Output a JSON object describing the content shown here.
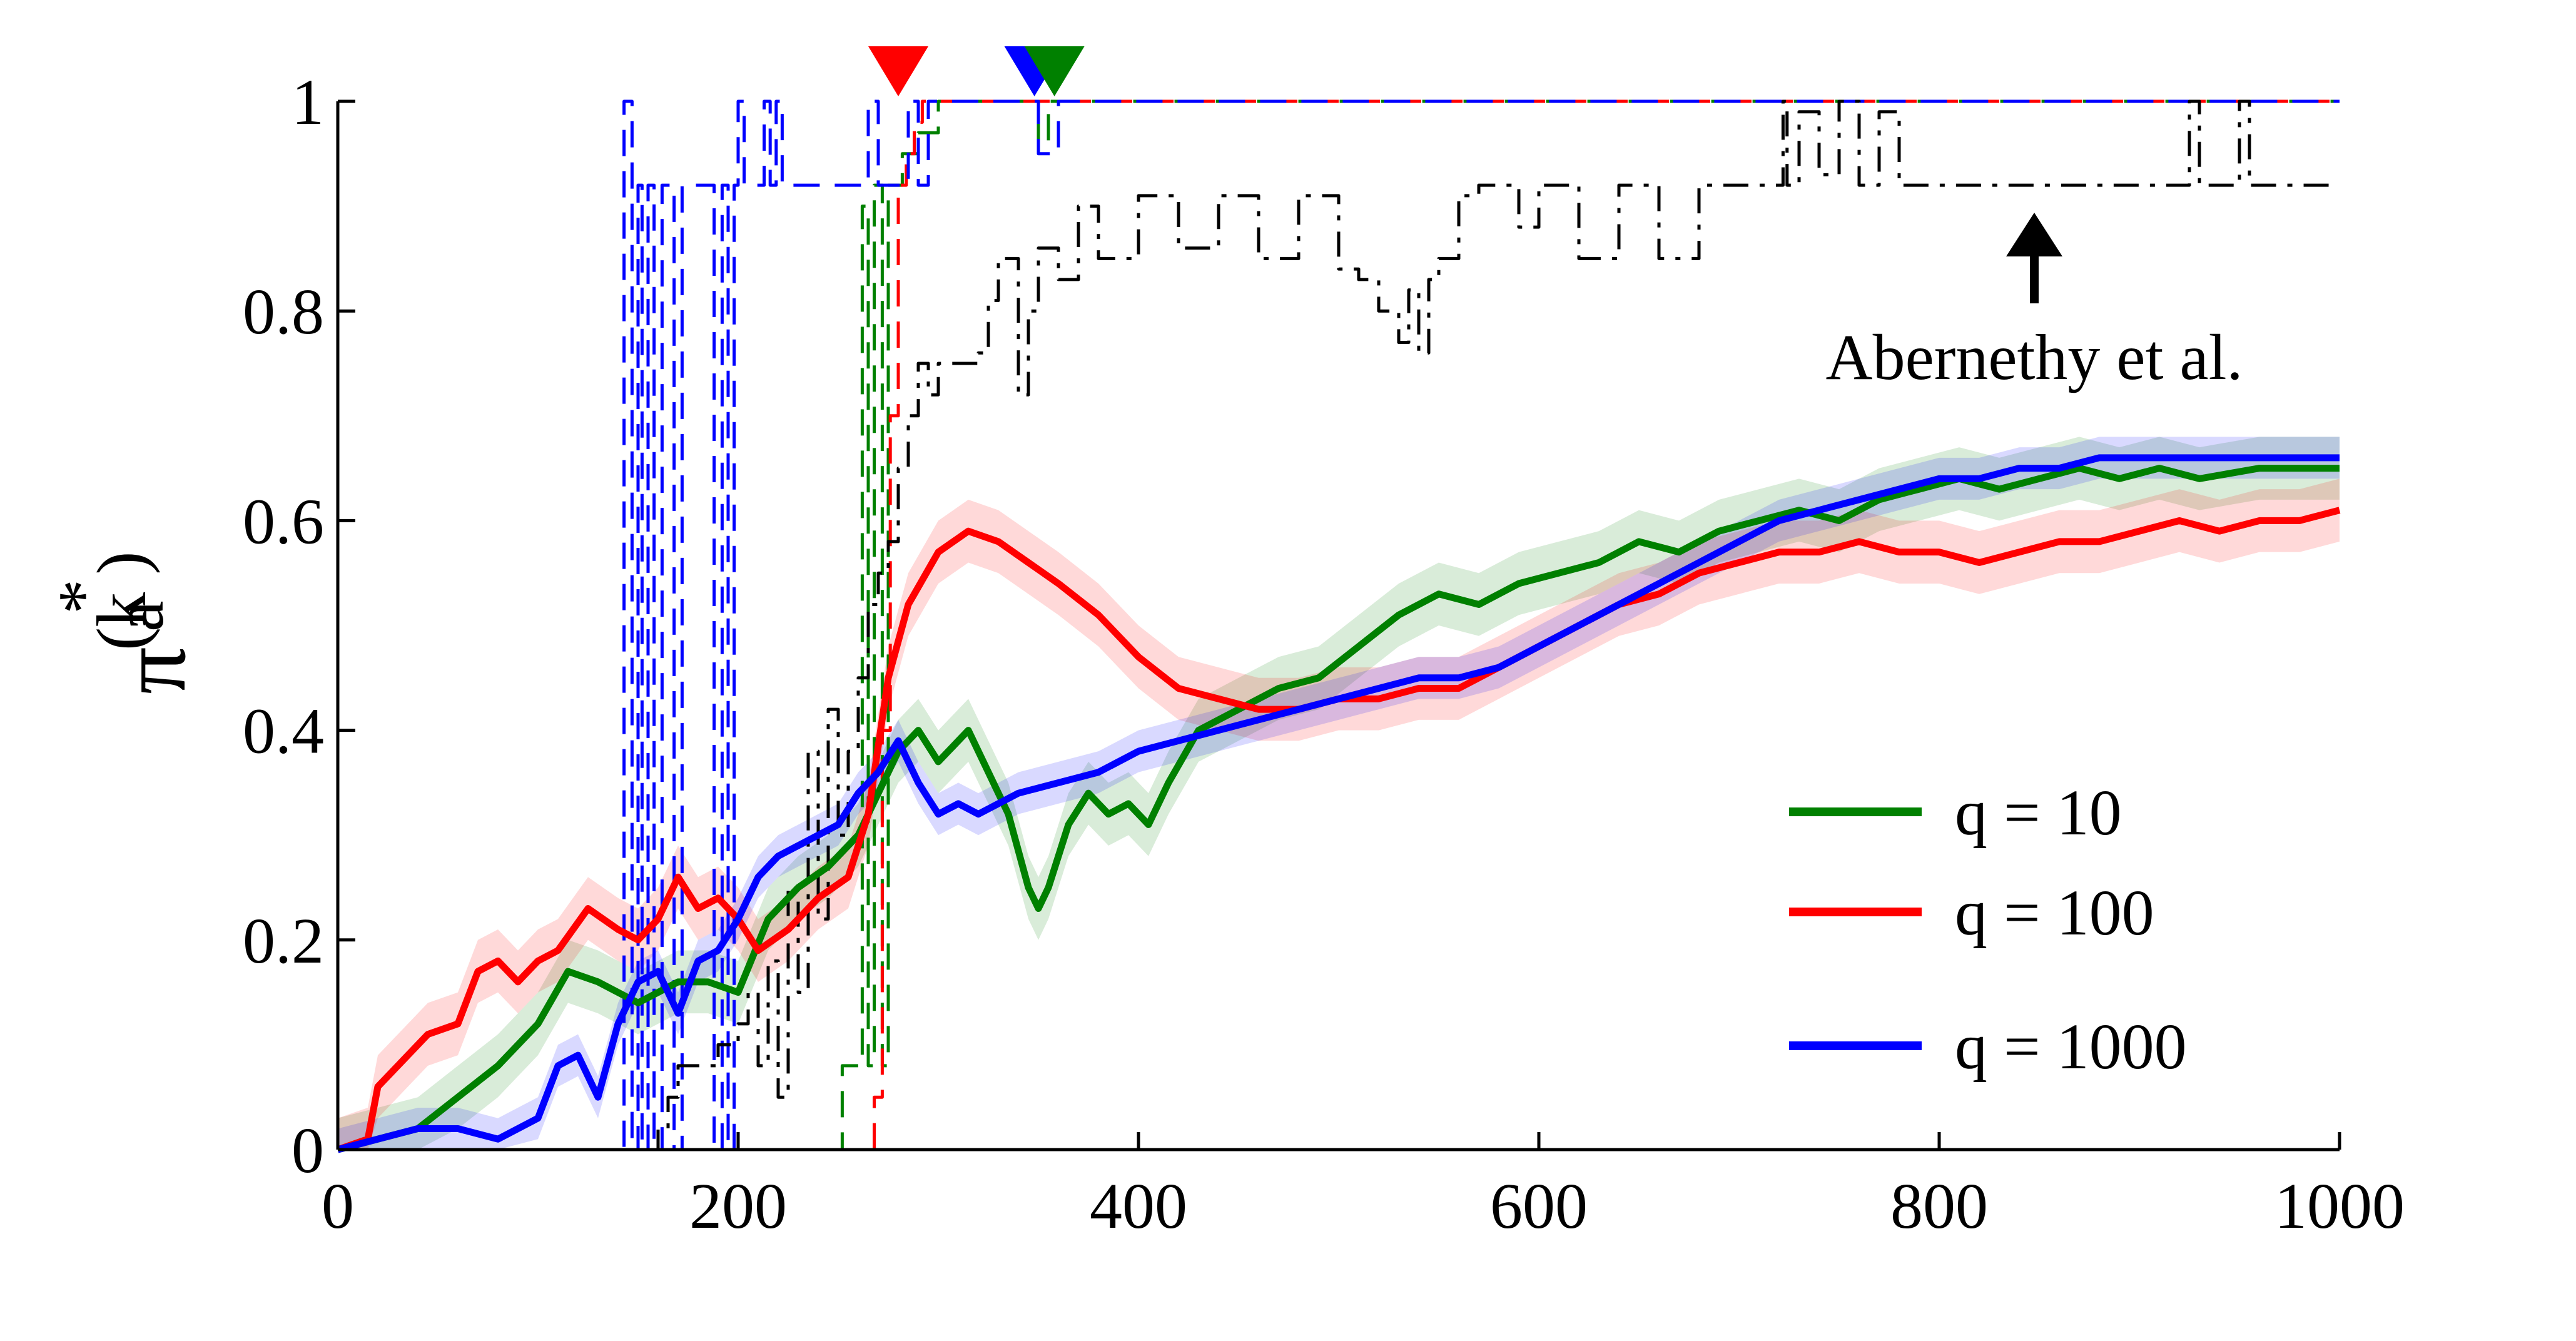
{
  "chart_data": {
    "type": "line",
    "title": "",
    "xlabel": "",
    "ylabel": {
      "symbol": "π",
      "superscript": "(k )",
      "star": "*",
      "subscript": "a"
    },
    "xlim": [
      0,
      1000
    ],
    "ylim": [
      0,
      1
    ],
    "x_ticks": [
      0,
      200,
      400,
      600,
      800,
      1000
    ],
    "y_ticks": [
      0,
      0.2,
      0.4,
      0.6,
      0.8,
      1
    ],
    "x_tick_labels": [
      "0",
      "200",
      "400",
      "600",
      "800",
      "1000"
    ],
    "y_tick_labels": [
      "0",
      "0.2",
      "0.4",
      "0.6",
      "0.8",
      "1"
    ],
    "grid": false,
    "legend_position": "lower-right",
    "legend": [
      {
        "label": "q = 10",
        "color": "#008000"
      },
      {
        "label": "q = 100",
        "color": "#ff0000"
      },
      {
        "label": "q = 1000",
        "color": "#0000ff"
      }
    ],
    "annotation": {
      "text": "Abernethy et al.",
      "x": 845,
      "y": 0.82
    },
    "series": [
      {
        "color": "#008000",
        "style": "solid",
        "x": [
          0,
          20,
          40,
          60,
          80,
          100,
          115,
          130,
          150,
          170,
          185,
          200,
          215,
          230,
          245,
          260,
          280,
          290,
          300,
          315,
          325,
          335,
          345,
          350,
          355,
          365,
          375,
          385,
          395,
          405,
          415,
          430,
          450,
          470,
          490,
          510,
          530,
          550,
          570,
          590,
          610,
          630,
          650,
          670,
          690,
          710,
          730,
          750,
          770,
          790,
          810,
          830,
          850,
          870,
          890,
          910,
          930,
          960,
          1000
        ],
        "y": [
          0,
          0.01,
          0.02,
          0.05,
          0.08,
          0.12,
          0.17,
          0.16,
          0.14,
          0.16,
          0.16,
          0.15,
          0.22,
          0.25,
          0.27,
          0.3,
          0.38,
          0.4,
          0.37,
          0.4,
          0.36,
          0.32,
          0.25,
          0.23,
          0.25,
          0.31,
          0.34,
          0.32,
          0.33,
          0.31,
          0.35,
          0.4,
          0.42,
          0.44,
          0.45,
          0.48,
          0.51,
          0.53,
          0.52,
          0.54,
          0.55,
          0.56,
          0.58,
          0.57,
          0.59,
          0.6,
          0.61,
          0.6,
          0.62,
          0.63,
          0.64,
          0.63,
          0.64,
          0.65,
          0.64,
          0.65,
          0.64,
          0.65,
          0.65
        ],
        "band": 0.03
      },
      {
        "color": "#ff0000",
        "style": "solid",
        "x": [
          0,
          15,
          20,
          30,
          45,
          60,
          70,
          80,
          90,
          100,
          110,
          125,
          140,
          150,
          160,
          170,
          180,
          190,
          200,
          210,
          225,
          240,
          255,
          265,
          275,
          285,
          300,
          315,
          330,
          345,
          360,
          380,
          400,
          420,
          440,
          460,
          480,
          500,
          520,
          540,
          560,
          580,
          600,
          620,
          640,
          660,
          680,
          700,
          720,
          740,
          760,
          780,
          800,
          820,
          840,
          860,
          880,
          900,
          920,
          940,
          960,
          980,
          1000
        ],
        "y": [
          0,
          0.01,
          0.06,
          0.08,
          0.11,
          0.12,
          0.17,
          0.18,
          0.16,
          0.18,
          0.19,
          0.23,
          0.21,
          0.2,
          0.22,
          0.26,
          0.23,
          0.24,
          0.22,
          0.19,
          0.21,
          0.24,
          0.26,
          0.32,
          0.45,
          0.52,
          0.57,
          0.59,
          0.58,
          0.56,
          0.54,
          0.51,
          0.47,
          0.44,
          0.43,
          0.42,
          0.42,
          0.43,
          0.43,
          0.44,
          0.44,
          0.46,
          0.48,
          0.5,
          0.52,
          0.53,
          0.55,
          0.56,
          0.57,
          0.57,
          0.58,
          0.57,
          0.57,
          0.56,
          0.57,
          0.58,
          0.58,
          0.59,
          0.6,
          0.59,
          0.6,
          0.6,
          0.61
        ],
        "band": 0.03
      },
      {
        "color": "#0000ff",
        "style": "solid",
        "x": [
          0,
          20,
          40,
          60,
          80,
          100,
          110,
          120,
          130,
          140,
          150,
          160,
          170,
          180,
          190,
          200,
          210,
          220,
          230,
          240,
          250,
          260,
          270,
          280,
          290,
          300,
          310,
          320,
          330,
          340,
          360,
          380,
          400,
          420,
          440,
          460,
          480,
          500,
          520,
          540,
          560,
          580,
          600,
          620,
          640,
          660,
          680,
          700,
          720,
          740,
          760,
          780,
          800,
          820,
          840,
          860,
          880,
          900,
          920,
          940,
          960,
          980,
          1000
        ],
        "y": [
          0,
          0.01,
          0.02,
          0.02,
          0.01,
          0.03,
          0.08,
          0.09,
          0.05,
          0.12,
          0.16,
          0.17,
          0.13,
          0.18,
          0.19,
          0.22,
          0.26,
          0.28,
          0.29,
          0.3,
          0.31,
          0.34,
          0.36,
          0.39,
          0.35,
          0.32,
          0.33,
          0.32,
          0.33,
          0.34,
          0.35,
          0.36,
          0.38,
          0.39,
          0.4,
          0.41,
          0.42,
          0.43,
          0.44,
          0.45,
          0.45,
          0.46,
          0.48,
          0.5,
          0.52,
          0.54,
          0.56,
          0.58,
          0.6,
          0.61,
          0.62,
          0.63,
          0.64,
          0.64,
          0.65,
          0.65,
          0.66,
          0.66,
          0.66,
          0.66,
          0.66,
          0.66,
          0.66
        ],
        "band": 0.02
      },
      {
        "color": "#008000",
        "style": "dashed",
        "x": [
          0,
          30,
          60,
          100,
          150,
          200,
          240,
          250,
          252,
          260,
          262,
          265,
          268,
          272,
          275,
          280,
          282,
          290,
          300,
          320,
          340,
          350,
          355,
          360,
          400,
          600,
          800,
          1000
        ],
        "y": [
          0,
          0,
          0,
          0,
          0,
          0,
          0,
          0,
          0.08,
          0.08,
          0.9,
          0.08,
          0.92,
          0.08,
          0.92,
          0.92,
          0.95,
          0.97,
          1,
          1,
          1,
          0.96,
          1,
          1,
          1,
          1,
          1,
          1
        ],
        "band": 0
      },
      {
        "color": "#ff0000",
        "style": "dashed",
        "x": [
          0,
          100,
          200,
          265,
          268,
          272,
          276,
          280,
          284,
          288,
          292,
          296,
          300,
          400,
          600,
          800,
          1000
        ],
        "y": [
          0,
          0,
          0,
          0,
          0.05,
          0.4,
          0.7,
          0.92,
          0.95,
          0.98,
          1,
          1,
          1,
          1,
          1,
          1,
          1
        ],
        "band": 0
      },
      {
        "color": "#0000ff",
        "style": "dashed",
        "x": [
          0,
          140,
          143,
          147,
          150,
          152,
          155,
          158,
          162,
          168,
          172,
          185,
          188,
          192,
          195,
          198,
          200,
          203,
          210,
          213,
          216,
          219,
          222,
          226,
          230,
          250,
          260,
          265,
          270,
          280,
          285,
          290,
          295,
          300,
          340,
          350,
          360,
          400,
          600,
          800,
          1000
        ],
        "y": [
          0,
          0,
          1,
          0,
          0.92,
          0,
          0.92,
          0,
          0.92,
          0,
          0.92,
          0.92,
          0,
          0.92,
          0,
          0.92,
          1,
          0.92,
          0.92,
          1,
          0.92,
          1,
          0.92,
          0.92,
          0.92,
          0.92,
          0.92,
          1,
          0.92,
          0.92,
          1,
          0.92,
          1,
          1,
          1,
          0.95,
          1,
          1,
          1,
          1,
          1
        ],
        "band": 0
      },
      {
        "color": "#000000",
        "style": "dashdot",
        "x": [
          0,
          150,
          160,
          165,
          170,
          180,
          190,
          200,
          205,
          210,
          215,
          220,
          225,
          230,
          235,
          240,
          245,
          250,
          255,
          260,
          265,
          270,
          275,
          280,
          285,
          290,
          295,
          300,
          310,
          320,
          325,
          330,
          340,
          345,
          350,
          360,
          370,
          380,
          400,
          420,
          440,
          460,
          480,
          500,
          510,
          520,
          530,
          535,
          540,
          545,
          550,
          560,
          570,
          580,
          590,
          600,
          620,
          640,
          660,
          680,
          700,
          720,
          722,
          724,
          730,
          740,
          750,
          760,
          770,
          780,
          800,
          820,
          840,
          860,
          880,
          900,
          920,
          925,
          930,
          940,
          950,
          955,
          960,
          980,
          1000
        ],
        "y": [
          0,
          0,
          0.02,
          0.05,
          0.08,
          0.08,
          0.1,
          0.12,
          0.15,
          0.08,
          0.18,
          0.05,
          0.25,
          0.15,
          0.38,
          0.22,
          0.42,
          0.3,
          0.38,
          0.45,
          0.52,
          0.55,
          0.58,
          0.65,
          0.7,
          0.75,
          0.72,
          0.75,
          0.75,
          0.76,
          0.81,
          0.85,
          0.72,
          0.8,
          0.86,
          0.83,
          0.9,
          0.85,
          0.91,
          0.86,
          0.91,
          0.85,
          0.91,
          0.84,
          0.83,
          0.8,
          0.77,
          0.82,
          0.76,
          0.83,
          0.85,
          0.91,
          0.92,
          0.92,
          0.88,
          0.92,
          0.85,
          0.92,
          0.85,
          0.92,
          0.92,
          0.92,
          1,
          0.92,
          0.99,
          0.93,
          1,
          0.92,
          0.99,
          0.92,
          0.92,
          0.92,
          0.92,
          0.92,
          0.92,
          0.92,
          0.92,
          1,
          0.92,
          0.92,
          1,
          0.92,
          0.92,
          0.92,
          0.92
        ],
        "band": 0
      }
    ],
    "markers": [
      {
        "x": 280,
        "color": "#ff0000",
        "shape": "down-triangle"
      },
      {
        "x": 348,
        "color": "#0000ff",
        "shape": "down-triangle"
      },
      {
        "x": 358,
        "color": "#008000",
        "shape": "down-triangle"
      }
    ]
  }
}
